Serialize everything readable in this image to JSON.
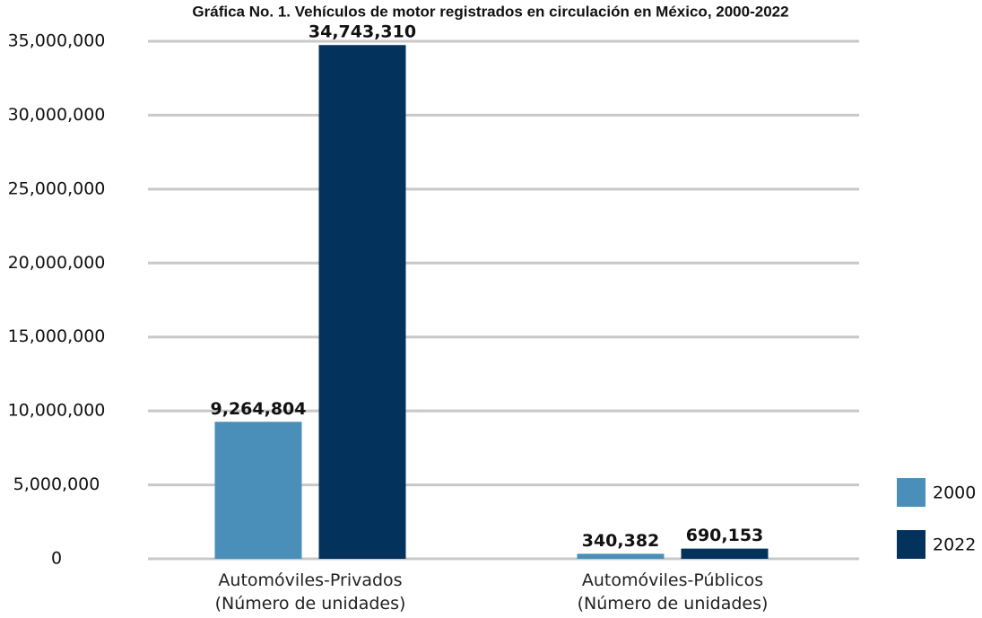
{
  "chart_data": {
    "type": "bar",
    "title": "Gráfica No. 1. Vehículos de motor registrados en circulación en México, 2000-2022",
    "categories": [
      "Automóviles-Privados\n(Número de unidades)",
      "Automóviles-Públicos\n(Número de unidades)"
    ],
    "series": [
      {
        "name": "2000",
        "color": "#4a8fb9",
        "values": [
          9264804,
          340382
        ],
        "value_labels": [
          "9,264,804",
          "340,382"
        ]
      },
      {
        "name": "2022",
        "color": "#03335c",
        "values": [
          34743310,
          690153
        ],
        "value_labels": [
          "34,743,310",
          "690,153"
        ]
      }
    ],
    "ylim": [
      0,
      35000000
    ],
    "yticks": [
      {
        "value": 0,
        "label": "0"
      },
      {
        "value": 5000000,
        "label": "5,000,000"
      },
      {
        "value": 10000000,
        "label": "10,000,000"
      },
      {
        "value": 15000000,
        "label": "15,000,000"
      },
      {
        "value": 20000000,
        "label": "20,000,000"
      },
      {
        "value": 25000000,
        "label": "25,000,000"
      },
      {
        "value": 30000000,
        "label": "30,000,000"
      },
      {
        "value": 35000000,
        "label": "35,000,000"
      }
    ],
    "grid": true,
    "legend": "right"
  }
}
